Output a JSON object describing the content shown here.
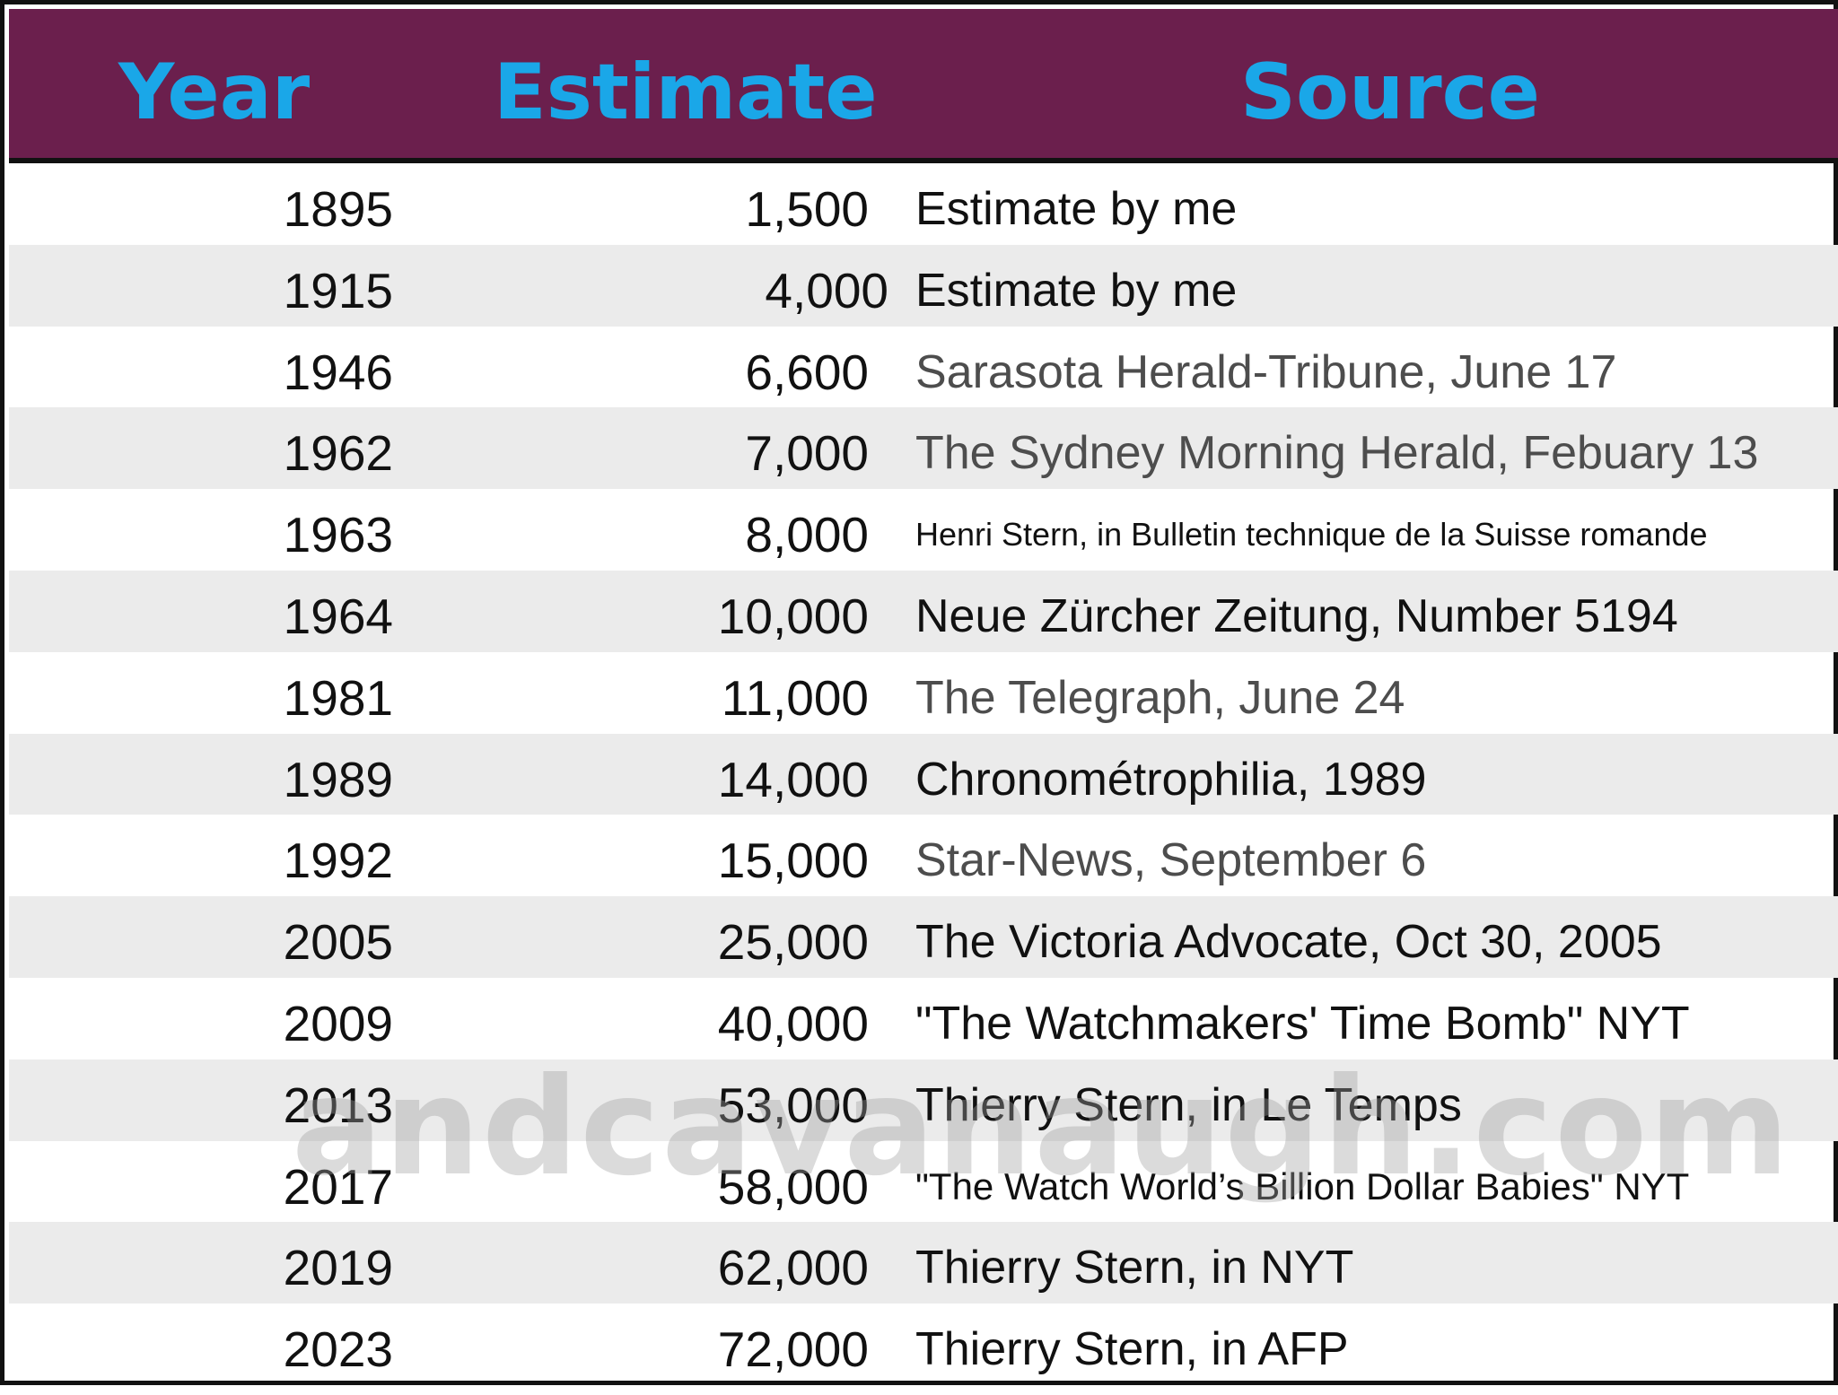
{
  "header": {
    "year": "Year",
    "estimate": "Estimate",
    "source": "Source"
  },
  "chart_data": {
    "type": "table",
    "columns": [
      "Year",
      "Estimate",
      "Source"
    ],
    "rows": [
      {
        "year": "1895",
        "estimate": "1,500",
        "source": "Estimate by me"
      },
      {
        "year": "1915",
        "estimate": "4,000",
        "source": "Estimate by me"
      },
      {
        "year": "1946",
        "estimate": "6,600",
        "source": "Sarasota Herald-Tribune, June 17"
      },
      {
        "year": "1962",
        "estimate": "7,000",
        "source": "The Sydney Morning Herald, Febuary 13"
      },
      {
        "year": "1963",
        "estimate": "8,000",
        "source": "Henri Stern, in Bulletin technique de la Suisse romande"
      },
      {
        "year": "1964",
        "estimate": "10,000",
        "source": "Neue Zürcher Zeitung, Number 5194"
      },
      {
        "year": "1981",
        "estimate": "11,000",
        "source": "The Telegraph, June 24"
      },
      {
        "year": "1989",
        "estimate": "14,000",
        "source": "Chronométrophilia, 1989"
      },
      {
        "year": "1992",
        "estimate": "15,000",
        "source": "Star-News, September 6"
      },
      {
        "year": "2005",
        "estimate": "25,000",
        "source": "The Victoria Advocate, Oct 30, 2005"
      },
      {
        "year": "2009",
        "estimate": "40,000",
        "source": "\"The Watchmakers' Time Bomb\" NYT"
      },
      {
        "year": "2013",
        "estimate": "53,000",
        "source": "Thierry Stern, in Le Temps"
      },
      {
        "year": "2017",
        "estimate": "58,000",
        "source": "\"The Watch World’s Billion Dollar Babies\" NYT"
      },
      {
        "year": "2019",
        "estimate": "62,000",
        "source": "Thierry Stern, in NYT"
      },
      {
        "year": "2023",
        "estimate": "72,000",
        "source": "Thierry Stern, in AFP"
      }
    ]
  },
  "watermark": "andcavanaugh.com",
  "colors": {
    "header_bg": "#6b1f4d",
    "header_text": "#1aa7e8",
    "row_shade": "#ebebeb"
  }
}
